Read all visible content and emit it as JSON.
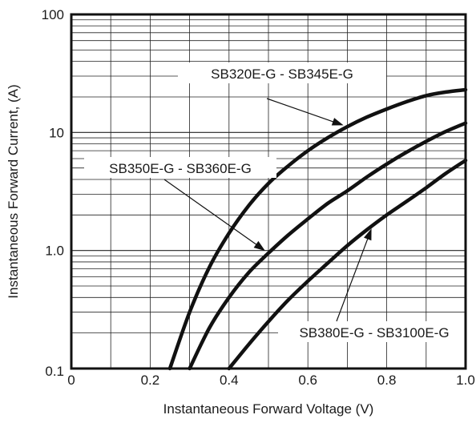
{
  "chart_data": {
    "type": "line",
    "title": "",
    "xlabel": "Instantaneous Forward Voltage (V)",
    "ylabel": "Instantaneous Forward Current, (A)",
    "xlim": [
      0,
      1.0
    ],
    "ylim": [
      0.1,
      100
    ],
    "yscale": "log",
    "grid": true,
    "x_ticks": [
      0,
      0.2,
      0.4,
      0.6,
      0.8,
      1.0
    ],
    "x_tick_labels": [
      "0",
      "0.2",
      "0.4",
      "0.6",
      "0.8",
      "1.0"
    ],
    "y_ticks": [
      0.1,
      1.0,
      10,
      100
    ],
    "y_tick_labels": [
      "0.1",
      "1.0",
      "10",
      "100"
    ],
    "series": [
      {
        "name": "SB320E-G - SB345E-G",
        "x": [
          0.25,
          0.3,
          0.35,
          0.4,
          0.45,
          0.5,
          0.55,
          0.6,
          0.65,
          0.7,
          0.75,
          0.8,
          0.85,
          0.9,
          0.95,
          1.0
        ],
        "y": [
          0.1,
          0.3,
          0.72,
          1.4,
          2.4,
          3.7,
          5.2,
          7.0,
          9.0,
          11.2,
          13.5,
          15.8,
          18.2,
          20.5,
          22.0,
          23.0
        ]
      },
      {
        "name": "SB350E-G - SB360E-G",
        "x": [
          0.3,
          0.35,
          0.4,
          0.45,
          0.5,
          0.55,
          0.6,
          0.65,
          0.7,
          0.75,
          0.8,
          0.85,
          0.9,
          0.95,
          1.0
        ],
        "y": [
          0.1,
          0.22,
          0.4,
          0.65,
          0.95,
          1.35,
          1.85,
          2.5,
          3.2,
          4.2,
          5.4,
          6.8,
          8.4,
          10.2,
          12.0
        ]
      },
      {
        "name": "SB380E-G - SB3100E-G",
        "x": [
          0.4,
          0.45,
          0.5,
          0.55,
          0.6,
          0.65,
          0.7,
          0.75,
          0.8,
          0.85,
          0.9,
          0.95,
          1.0
        ],
        "y": [
          0.1,
          0.16,
          0.25,
          0.38,
          0.55,
          0.78,
          1.1,
          1.5,
          2.0,
          2.6,
          3.4,
          4.5,
          5.8
        ]
      }
    ]
  }
}
